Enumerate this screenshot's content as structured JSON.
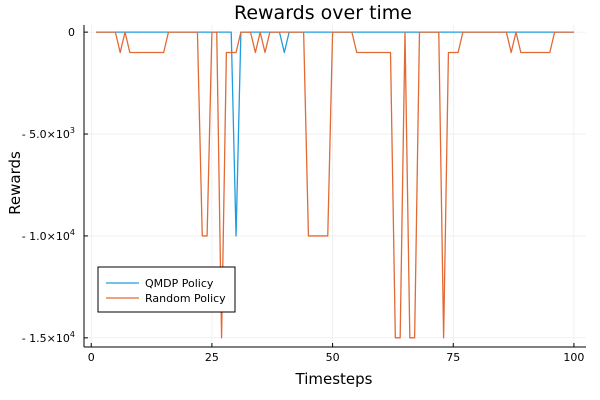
{
  "chart_data": {
    "type": "line",
    "title": "Rewards over time",
    "xlabel": "Timesteps",
    "ylabel": "Rewards",
    "xlim": [
      -1.5,
      102.5
    ],
    "ylim": [
      -15450,
      350
    ],
    "x_ticks": [
      {
        "value": 0,
        "label": "0"
      },
      {
        "value": 25,
        "label": "25"
      },
      {
        "value": 50,
        "label": "50"
      },
      {
        "value": 75,
        "label": "75"
      },
      {
        "value": 100,
        "label": "100"
      }
    ],
    "y_ticks": [
      {
        "value": 0,
        "prefix": "0",
        "exp": ""
      },
      {
        "value": -5000,
        "prefix": "- 5.0×10",
        "exp": "3"
      },
      {
        "value": -10000,
        "prefix": "- 1.0×10",
        "exp": "4"
      },
      {
        "value": -15000,
        "prefix": "- 1.5×10",
        "exp": "4"
      }
    ],
    "grid": true,
    "legend": "bottom-left",
    "series": [
      {
        "name": "QMDP Policy",
        "color": "#1f9de0",
        "points": [
          [
            1,
            0
          ],
          [
            29,
            0
          ],
          [
            30,
            -10000
          ],
          [
            31,
            0
          ],
          [
            39,
            0
          ],
          [
            40,
            -1000
          ],
          [
            41,
            0
          ],
          [
            100,
            0
          ]
        ]
      },
      {
        "name": "Random Policy",
        "color": "#e26a35",
        "points": [
          [
            1,
            0
          ],
          [
            5,
            0
          ],
          [
            6,
            -1000
          ],
          [
            7,
            0
          ],
          [
            8,
            -1000
          ],
          [
            15,
            -1000
          ],
          [
            16,
            0
          ],
          [
            22,
            0
          ],
          [
            23,
            -10000
          ],
          [
            24,
            -10000
          ],
          [
            25,
            0
          ],
          [
            26,
            0
          ],
          [
            27,
            -15000
          ],
          [
            28,
            -1000
          ],
          [
            30,
            -1000
          ],
          [
            31,
            0
          ],
          [
            33,
            0
          ],
          [
            34,
            -1000
          ],
          [
            35,
            0
          ],
          [
            36,
            -1000
          ],
          [
            37,
            0
          ],
          [
            44,
            0
          ],
          [
            45,
            -10000
          ],
          [
            49,
            -10000
          ],
          [
            50,
            0
          ],
          [
            54,
            0
          ],
          [
            55,
            -1000
          ],
          [
            62,
            -1000
          ],
          [
            63,
            -15000
          ],
          [
            64,
            -15000
          ],
          [
            65,
            0
          ],
          [
            66,
            -15000
          ],
          [
            67,
            -15000
          ],
          [
            68,
            0
          ],
          [
            72,
            0
          ],
          [
            73,
            -15000
          ],
          [
            74,
            -1000
          ],
          [
            76,
            -1000
          ],
          [
            77,
            0
          ],
          [
            86,
            0
          ],
          [
            87,
            -1000
          ],
          [
            88,
            0
          ],
          [
            89,
            -1000
          ],
          [
            95,
            -1000
          ],
          [
            96,
            0
          ],
          [
            100,
            0
          ]
        ]
      }
    ]
  }
}
